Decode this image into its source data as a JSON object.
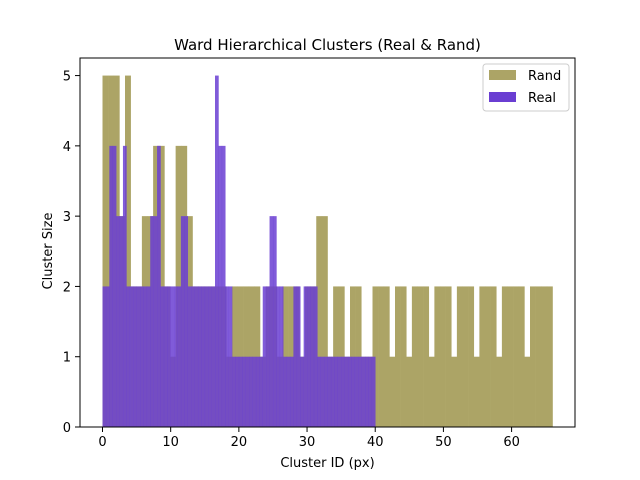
{
  "chart_data": {
    "type": "bar",
    "title": "Ward Hierarchical Clusters (Real & Rand)",
    "xlabel": "Cluster ID (px)",
    "ylabel": "Cluster Size",
    "xlim": [
      -3.3,
      69.3
    ],
    "ylim": [
      0,
      5.25
    ],
    "xticks": [
      0,
      10,
      20,
      30,
      40,
      50,
      60
    ],
    "yticks": [
      0,
      1,
      2,
      3,
      4,
      5
    ],
    "grid": false,
    "legend_position": "top-right",
    "series": [
      {
        "name": "Rand",
        "color": "#aca466",
        "bin_start": 0,
        "bin_width": 0.825,
        "values": [
          5,
          5,
          5,
          3,
          5,
          2,
          2,
          3,
          3,
          4,
          4,
          2,
          1,
          4,
          4,
          3,
          2,
          2,
          2,
          2,
          2,
          2,
          1,
          2,
          2,
          2,
          2,
          2,
          1,
          2,
          2,
          1,
          2,
          2,
          2,
          1,
          2,
          2,
          3,
          3,
          1,
          2,
          2,
          1,
          2,
          2,
          1,
          1,
          2,
          2,
          2,
          1,
          2,
          2,
          1,
          2,
          2,
          2,
          1,
          2,
          2,
          2,
          1,
          2,
          2,
          2,
          1,
          2,
          2,
          2,
          1,
          2,
          2,
          2,
          2,
          1,
          2,
          2,
          2,
          2
        ]
      },
      {
        "name": "Real",
        "color": "#6a3ed2",
        "bin_start": 0,
        "bin_width": 0.5,
        "values": [
          2,
          2,
          4,
          4,
          3,
          3,
          4,
          2,
          2,
          2,
          2,
          2,
          2,
          2,
          3,
          3,
          4,
          2,
          2,
          2,
          2,
          2,
          2,
          3,
          3,
          2,
          2,
          2,
          2,
          2,
          2,
          2,
          2,
          5,
          4,
          4,
          2,
          2,
          1,
          1,
          1,
          1,
          1,
          1,
          1,
          1,
          1,
          2,
          2,
          3,
          3,
          2,
          2,
          1,
          1,
          1,
          2,
          2,
          1,
          2,
          2,
          2,
          2,
          1,
          1,
          1,
          1,
          1,
          1,
          1,
          1,
          1,
          1,
          1,
          1,
          1,
          1,
          1,
          1,
          1
        ]
      }
    ]
  }
}
